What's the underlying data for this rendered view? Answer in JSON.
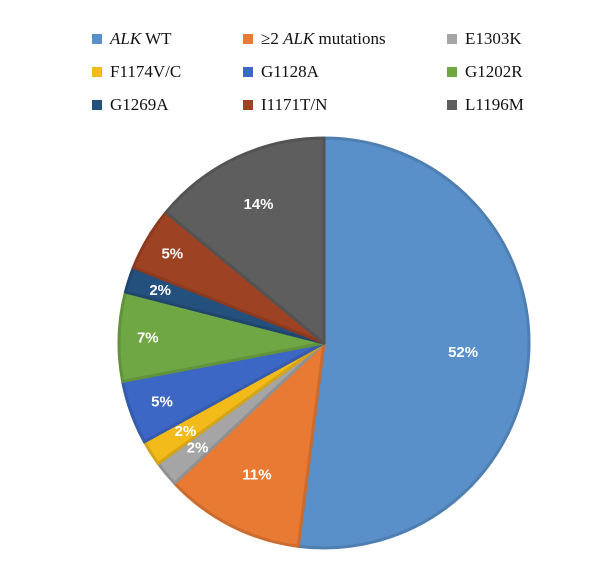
{
  "chart_data": {
    "type": "pie",
    "title": "",
    "start_angle_deg": 0,
    "direction": "clockwise",
    "categories": [
      "ALK WT",
      "≥2 ALK mutations",
      "E1303K",
      "F1174V/C",
      "G1128A",
      "G1202R",
      "G1269A",
      "I1171T/N",
      "L1196M"
    ],
    "values": [
      52,
      11,
      2,
      2,
      5,
      7,
      2,
      5,
      14
    ],
    "labels": [
      "52%",
      "11%",
      "2%",
      "2%",
      "5%",
      "7%",
      "2%",
      "5%",
      "14%"
    ],
    "colors": [
      "#5a90c9",
      "#e87a34",
      "#a5a5a5",
      "#f2bb1a",
      "#3d67c4",
      "#6fa744",
      "#24507d",
      "#9e4224",
      "#5e5e5e"
    ],
    "legend_position": "top",
    "legend": [
      {
        "prefix": "",
        "italic": "ALK",
        "suffix": " WT"
      },
      {
        "prefix": "≥2 ",
        "italic": "ALK",
        "suffix": " mutations"
      },
      {
        "prefix": "E1303K",
        "italic": "",
        "suffix": ""
      },
      {
        "prefix": "F1174V/C",
        "italic": "",
        "suffix": ""
      },
      {
        "prefix": "G1128A",
        "italic": "",
        "suffix": ""
      },
      {
        "prefix": "G1202R",
        "italic": "",
        "suffix": ""
      },
      {
        "prefix": "G1269A",
        "italic": "",
        "suffix": ""
      },
      {
        "prefix": "I1171T/N",
        "italic": "",
        "suffix": ""
      },
      {
        "prefix": "L1196M",
        "italic": "",
        "suffix": ""
      }
    ]
  }
}
